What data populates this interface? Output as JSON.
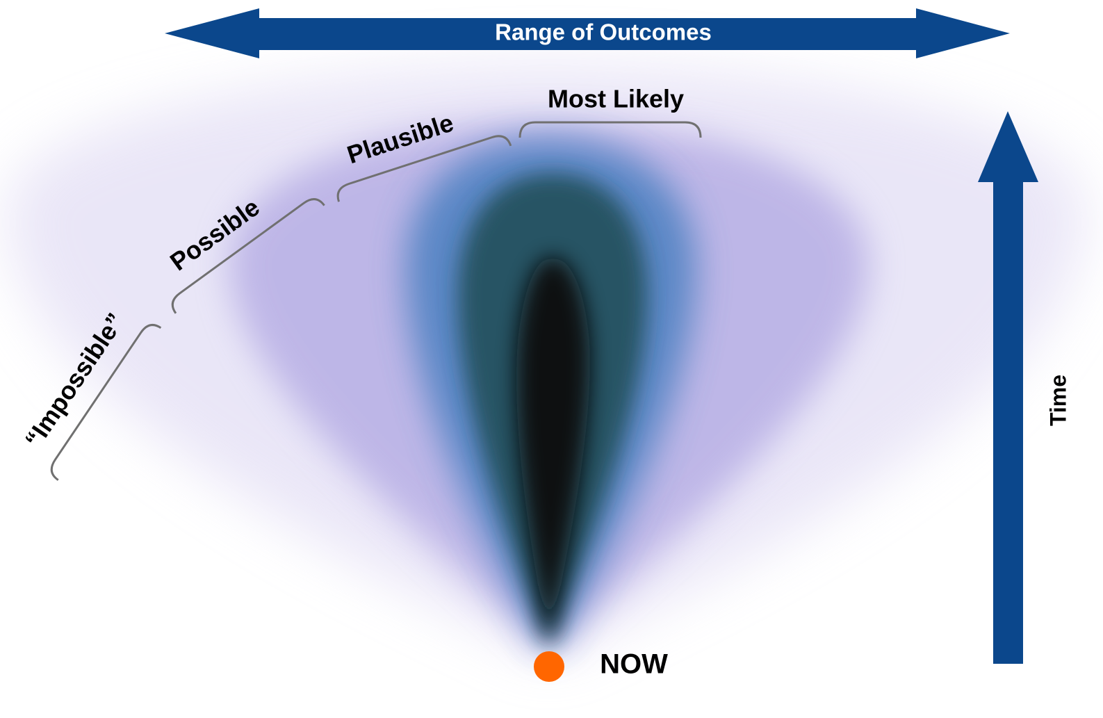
{
  "range_arrow": {
    "label": "Range of Outcomes"
  },
  "time_arrow": {
    "label": "Time"
  },
  "now": {
    "label": "NOW"
  },
  "brackets": [
    {
      "label": "Most Likely"
    },
    {
      "label": "Plausible"
    },
    {
      "label": "Possible"
    },
    {
      "label": "“Impossible”"
    }
  ]
}
